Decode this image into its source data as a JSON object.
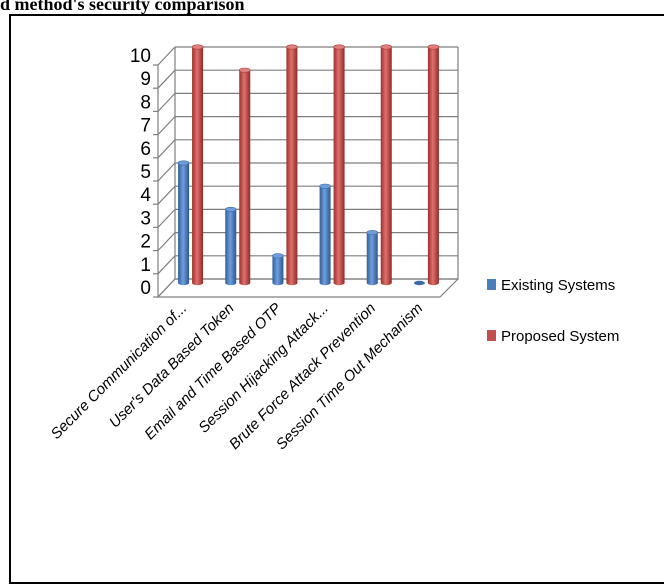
{
  "page_title": "d method's security comparison",
  "chart_data": {
    "type": "bar",
    "title": "d method's security comparison",
    "categories": [
      "Secure Communication of...",
      "User's Data Based Token",
      "Email and Time Based OTP",
      "Session Hijacking Attack...",
      "Brute Force Attack Prevention",
      "Session Time Out Mechanism"
    ],
    "series": [
      {
        "name": "Existing Systems",
        "values": [
          5,
          3,
          1,
          4,
          2,
          0
        ],
        "color": "#4a7ebb"
      },
      {
        "name": "Proposed System",
        "values": [
          10,
          9,
          10,
          10,
          10,
          10
        ],
        "color": "#c0504d"
      }
    ],
    "y_ticks": [
      "0",
      "1",
      "2",
      "3",
      "4",
      "5",
      "6",
      "7",
      "8",
      "9",
      "10"
    ],
    "ylim": [
      0,
      10
    ],
    "grid": true,
    "legend_position": "right",
    "style": "3d-clustered-cylinder"
  }
}
